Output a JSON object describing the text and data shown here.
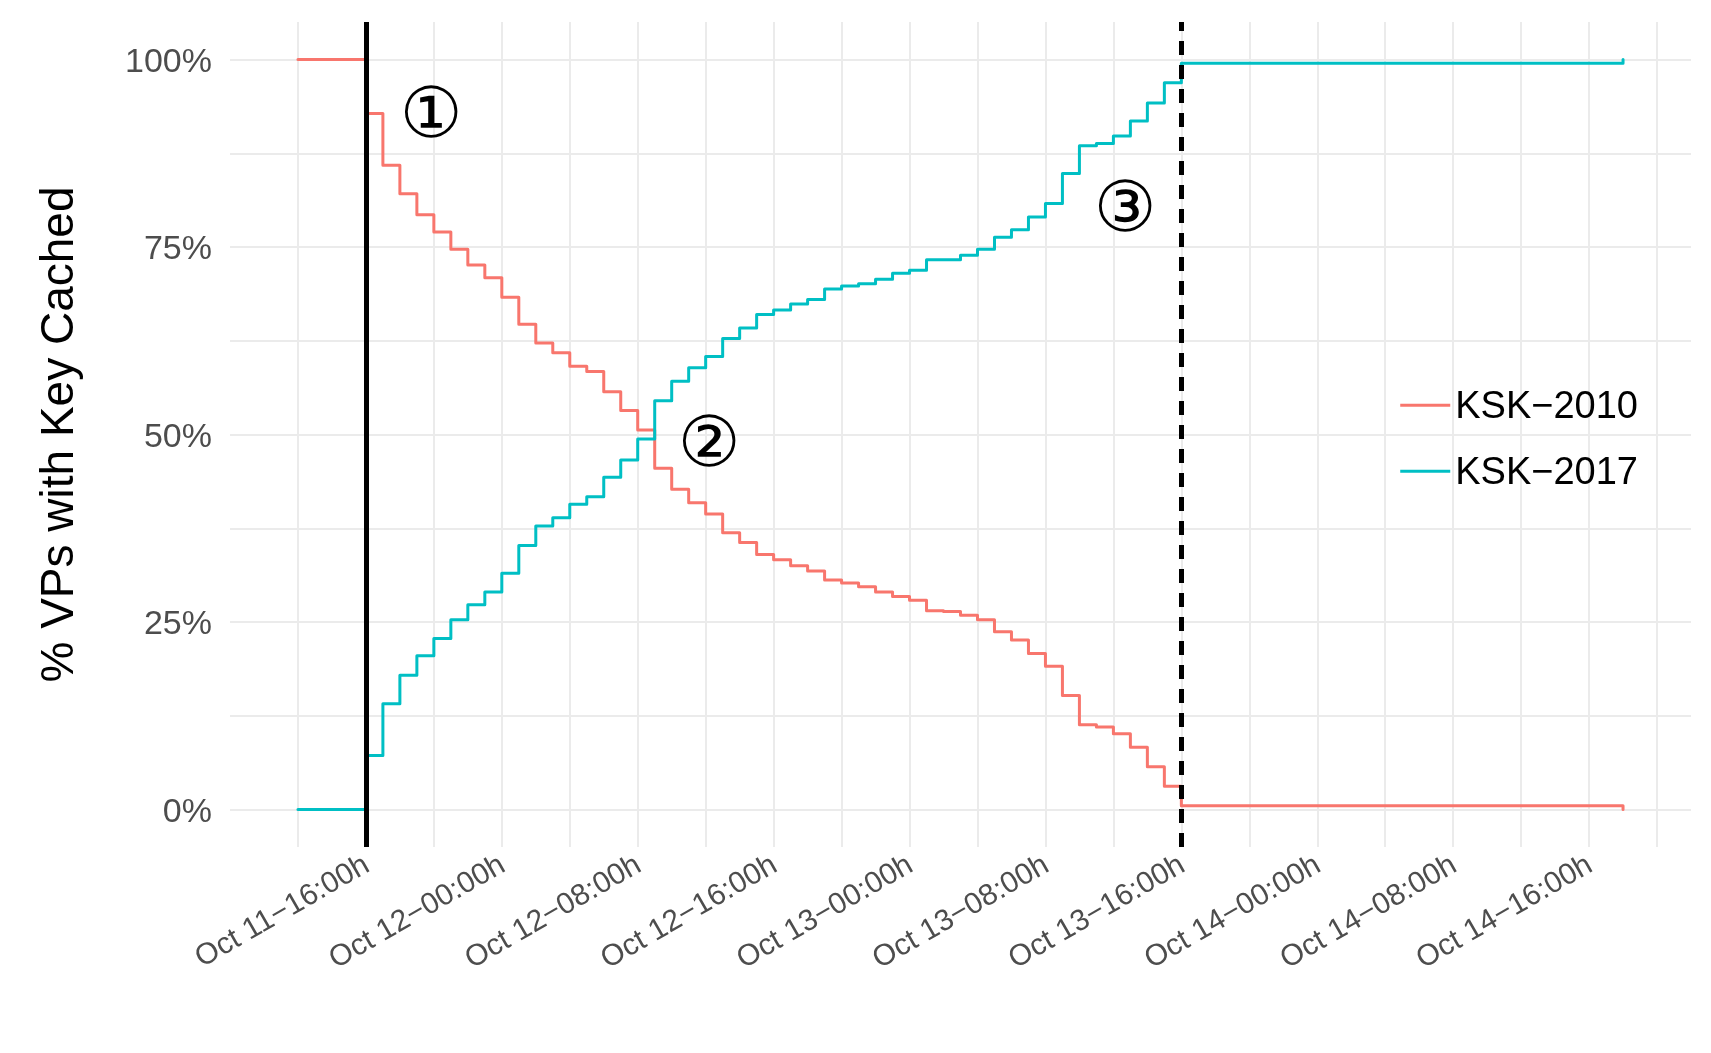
{
  "chart_data": {
    "type": "step",
    "ylabel": "% VPs with Key Cached",
    "x": [
      "--10-11T12:00",
      "--10-11T16:00",
      "--10-11T17:00",
      "--10-11T18:00",
      "--10-11T19:00",
      "--10-11T20:00",
      "--10-11T21:00",
      "--10-11T22:00",
      "--10-11T23:00",
      "--10-12T00:00",
      "--10-12T01:00",
      "--10-12T02:00",
      "--10-12T03:00",
      "--10-12T04:00",
      "--10-12T05:00",
      "--10-12T06:00",
      "--10-12T07:00",
      "--10-12T08:00",
      "--10-12T09:00",
      "--10-12T10:00",
      "--10-12T11:00",
      "--10-12T12:00",
      "--10-12T13:00",
      "--10-12T14:00",
      "--10-12T15:00",
      "--10-12T16:00",
      "--10-12T17:00",
      "--10-12T18:00",
      "--10-12T19:00",
      "--10-12T20:00",
      "--10-12T21:00",
      "--10-12T22:00",
      "--10-12T23:00",
      "--10-13T00:00",
      "--10-13T01:00",
      "--10-13T02:00",
      "--10-13T03:00",
      "--10-13T04:00",
      "--10-13T05:00",
      "--10-13T06:00",
      "--10-13T07:00",
      "--10-13T08:00",
      "--10-13T09:00",
      "--10-13T10:00",
      "--10-13T11:00",
      "--10-13T12:00",
      "--10-13T13:00",
      "--10-13T14:00",
      "--10-13T15:00",
      "--10-13T16:00",
      "--10-14T18:00"
    ],
    "series": [
      {
        "name": "KSK−2010",
        "color": "#f8766d",
        "values": [
          100,
          92.8,
          85.9,
          82.1,
          79.3,
          77.0,
          74.7,
          72.6,
          70.9,
          68.3,
          64.7,
          62.2,
          60.9,
          59.1,
          58.4,
          55.7,
          53.2,
          50.6,
          45.5,
          42.7,
          40.9,
          39.4,
          36.9,
          35.6,
          34.0,
          33.3,
          32.5,
          31.8,
          30.6,
          30.2,
          29.7,
          29.0,
          28.4,
          27.9,
          26.5,
          26.4,
          25.9,
          25.3,
          23.7,
          22.6,
          20.8,
          19.1,
          15.2,
          11.3,
          11.0,
          10.1,
          8.3,
          5.7,
          3.1,
          0.5,
          0
        ]
      },
      {
        "name": "KSK−2017",
        "color": "#00bfc4",
        "values": [
          0,
          7.2,
          14.1,
          17.9,
          20.5,
          22.8,
          25.3,
          27.3,
          29.0,
          31.5,
          35.2,
          37.8,
          38.9,
          40.7,
          41.7,
          44.3,
          46.6,
          49.4,
          54.5,
          57.1,
          58.9,
          60.4,
          62.8,
          64.2,
          66.0,
          66.6,
          67.4,
          68.0,
          69.4,
          69.8,
          70.1,
          70.7,
          71.5,
          71.9,
          73.3,
          73.3,
          73.9,
          74.7,
          76.3,
          77.3,
          79.0,
          80.8,
          84.8,
          88.5,
          88.8,
          89.8,
          91.8,
          94.2,
          96.9,
          99.5,
          100
        ]
      }
    ],
    "xlim": [
      "--10-11T08:00",
      "--10-14T22:00"
    ],
    "xticks": [
      {
        "value": "--10-11T12:00",
        "label": null
      },
      {
        "value": "--10-11T16:00",
        "label": "Oct 11−16:00h"
      },
      {
        "value": "--10-11T20:00",
        "label": null
      },
      {
        "value": "--10-12T00:00",
        "label": "Oct 12−00:00h"
      },
      {
        "value": "--10-12T04:00",
        "label": null
      },
      {
        "value": "--10-12T08:00",
        "label": "Oct 12−08:00h"
      },
      {
        "value": "--10-12T12:00",
        "label": null
      },
      {
        "value": "--10-12T16:00",
        "label": "Oct 12−16:00h"
      },
      {
        "value": "--10-12T20:00",
        "label": null
      },
      {
        "value": "--10-13T00:00",
        "label": "Oct 13−00:00h"
      },
      {
        "value": "--10-13T04:00",
        "label": null
      },
      {
        "value": "--10-13T08:00",
        "label": "Oct 13−08:00h"
      },
      {
        "value": "--10-13T12:00",
        "label": null
      },
      {
        "value": "--10-13T16:00",
        "label": "Oct 13−16:00h"
      },
      {
        "value": "--10-13T20:00",
        "label": null
      },
      {
        "value": "--10-14T00:00",
        "label": "Oct 14−00:00h"
      },
      {
        "value": "--10-14T04:00",
        "label": null
      },
      {
        "value": "--10-14T08:00",
        "label": "Oct 14−08:00h"
      },
      {
        "value": "--10-14T12:00",
        "label": null
      },
      {
        "value": "--10-14T16:00",
        "label": "Oct 14−16:00h"
      },
      {
        "value": "--10-14T20:00",
        "label": null
      }
    ],
    "ylim": [
      -5,
      105
    ],
    "yticks": [
      {
        "value": 0,
        "label": "0%"
      },
      {
        "value": 12.5,
        "label": null
      },
      {
        "value": 25,
        "label": "25%"
      },
      {
        "value": 37.5,
        "label": null
      },
      {
        "value": 50,
        "label": "50%"
      },
      {
        "value": 62.5,
        "label": null
      },
      {
        "value": 75,
        "label": "75%"
      },
      {
        "value": 87.5,
        "label": null
      },
      {
        "value": 100,
        "label": "100%"
      }
    ],
    "grid": true,
    "legend": "right",
    "marker": "none",
    "line_style": "solid",
    "ref_lines": [
      {
        "axis": "x",
        "value": "--10-11T16:00",
        "label": null,
        "color": "#000000",
        "line_style": "solid"
      },
      {
        "axis": "x",
        "value": "--10-13T16:00",
        "label": null,
        "color": "#000000",
        "line_style": "dashed"
      }
    ],
    "annotations": [
      "①",
      "②",
      "③"
    ]
  }
}
